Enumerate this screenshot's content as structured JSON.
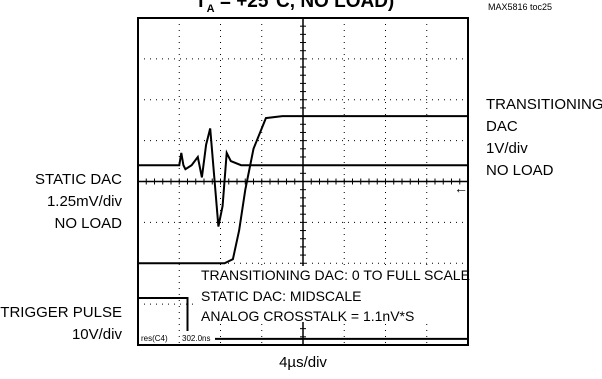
{
  "title": {
    "main": "T",
    "sub": "A",
    "rest": " = +25°C, NO LOAD)"
  },
  "figure_id": "MAX5816 toc25",
  "labels": {
    "transitioning": [
      "TRANSITIONING",
      "DAC",
      "1V/div",
      "NO LOAD"
    ],
    "static": [
      "STATIC DAC",
      "1.25mV/div",
      "NO LOAD"
    ],
    "trigger": [
      "TRIGGER PULSE",
      "10V/div"
    ],
    "xscale": "4µs/div"
  },
  "annotations": [
    "TRANSITIONING DAC: 0 TO FULL SCALE",
    "STATIC DAC: MIDSCALE",
    "ANALOG CROSSTALK = 1.1nV*S"
  ],
  "scope_readout": [
    "res(C4)",
    "302.0ns"
  ],
  "chart_data": {
    "type": "line",
    "grid": true,
    "x_divisions": 8,
    "y_divisions": 8,
    "x_scale": "4µs/div",
    "series": [
      {
        "name": "TRANSITIONING DAC",
        "scale": "1V/div",
        "x_div": [
          0,
          2.1,
          2.3,
          2.45,
          2.6,
          2.8,
          3.1,
          3.5,
          8
        ],
        "y_div": [
          0.2,
          0.2,
          0.3,
          1.0,
          2.0,
          3.0,
          3.75,
          3.8,
          3.8
        ]
      },
      {
        "name": "STATIC DAC",
        "scale": "1.25mV/div",
        "x_div": [
          0,
          1.0,
          1.05,
          1.1,
          1.15,
          1.3,
          1.45,
          1.55,
          1.65,
          1.75,
          1.85,
          1.95,
          2.05,
          2.15,
          2.25,
          2.5,
          3,
          8
        ],
        "y_div": [
          0,
          0,
          0.3,
          0,
          -0.1,
          0,
          0.2,
          -0.3,
          0.5,
          0.9,
          -0.3,
          -1.5,
          -1.0,
          0.3,
          0.1,
          0,
          0,
          0
        ]
      },
      {
        "name": "TRIGGER PULSE",
        "scale": "10V/div",
        "x_div": [
          0,
          1.2,
          1.2,
          8
        ],
        "y_div": [
          1,
          1,
          0,
          0
        ]
      }
    ]
  }
}
